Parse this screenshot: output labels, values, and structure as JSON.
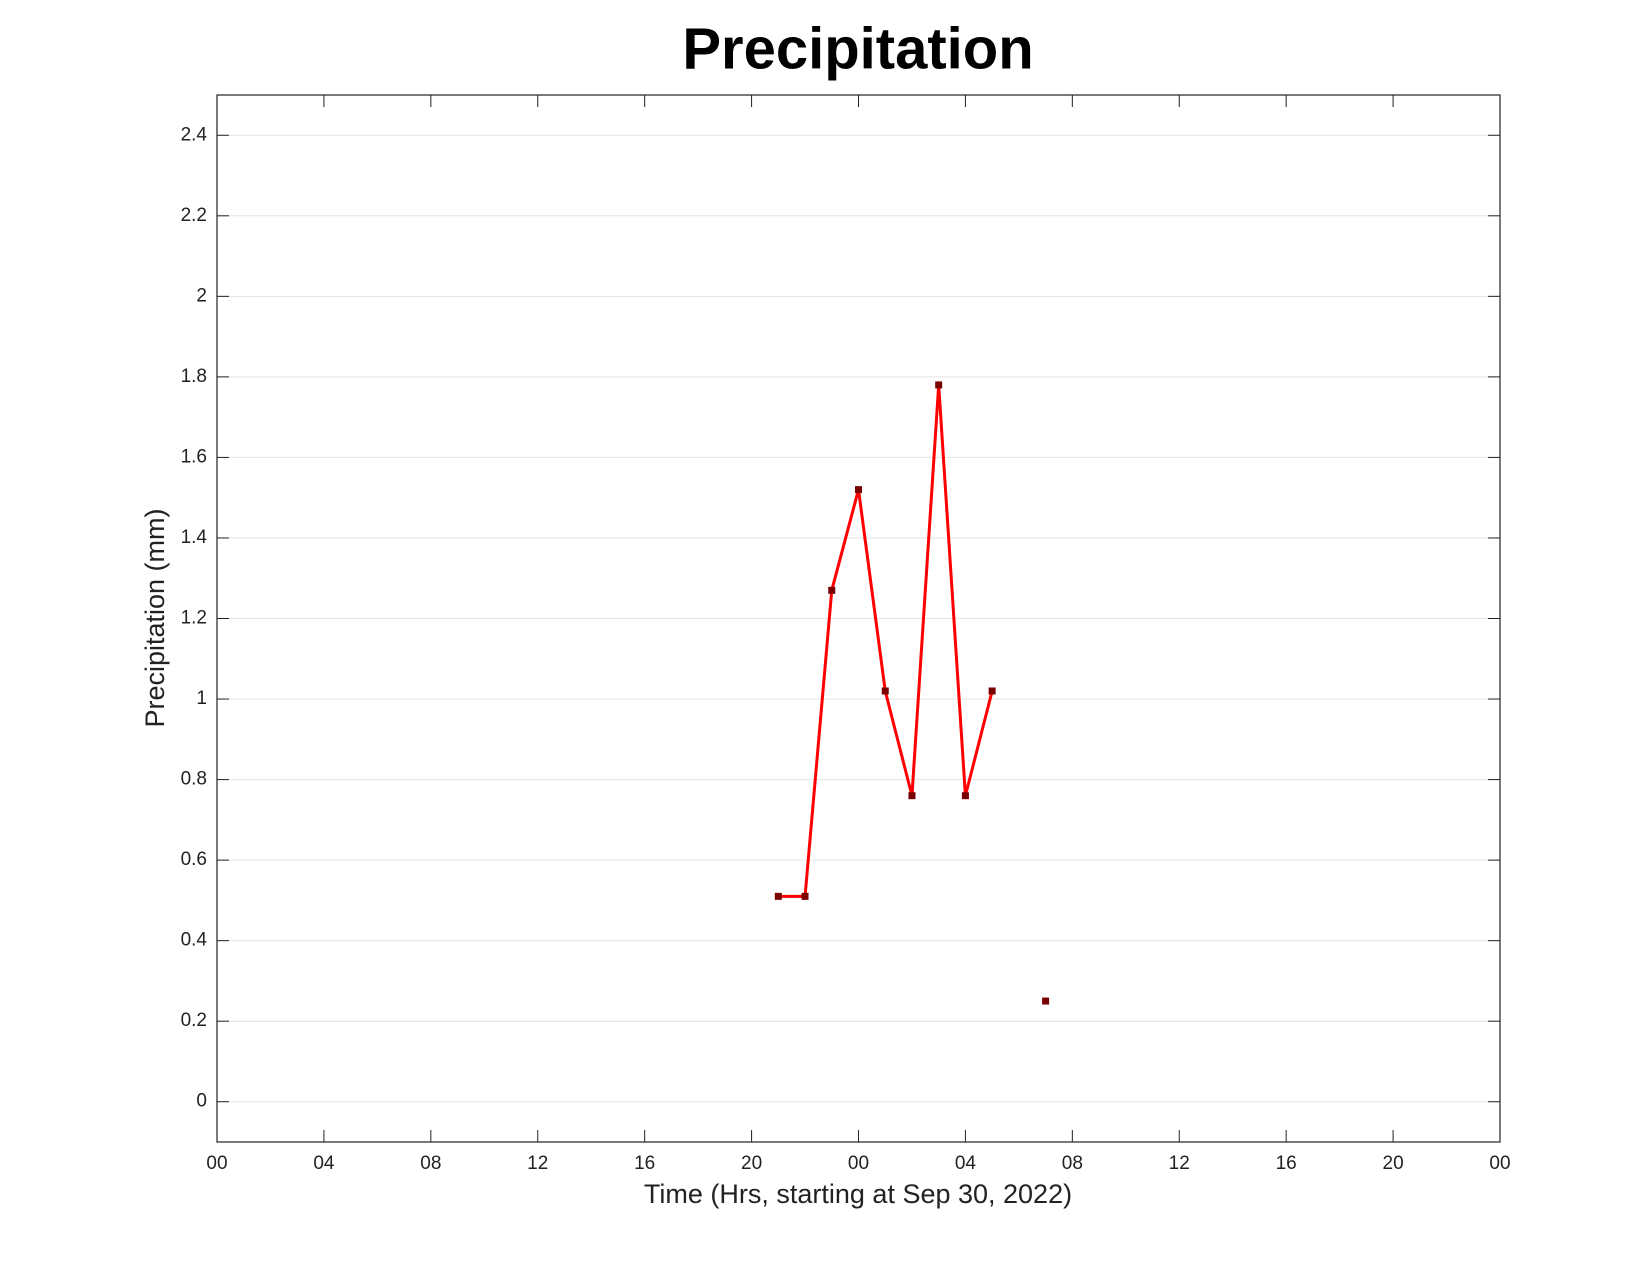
{
  "chart_data": {
    "type": "line",
    "title": "Precipitation",
    "xlabel": "Time (Hrs, starting at Sep 30, 2022)",
    "ylabel": "Precipitation (mm)",
    "x": [
      21,
      22,
      23,
      24,
      25,
      26,
      27,
      28,
      29,
      30,
      31
    ],
    "values": [
      0.51,
      0.51,
      1.27,
      1.52,
      1.02,
      0.76,
      1.78,
      0.76,
      1.02,
      null,
      0.25
    ],
    "color": "#ff0000",
    "marker_color": "#7a0000",
    "xlim": [
      0,
      48
    ],
    "xticks": [
      {
        "value": 0,
        "label": "00"
      },
      {
        "value": 4,
        "label": "04"
      },
      {
        "value": 8,
        "label": "08"
      },
      {
        "value": 12,
        "label": "12"
      },
      {
        "value": 16,
        "label": "16"
      },
      {
        "value": 20,
        "label": "20"
      },
      {
        "value": 24,
        "label": "00"
      },
      {
        "value": 28,
        "label": "04"
      },
      {
        "value": 32,
        "label": "08"
      },
      {
        "value": 36,
        "label": "12"
      },
      {
        "value": 40,
        "label": "16"
      },
      {
        "value": 44,
        "label": "20"
      },
      {
        "value": 48,
        "label": "00"
      }
    ],
    "ylim": [
      -0.1,
      2.5
    ],
    "yticks": [
      0,
      0.2,
      0.4,
      0.6,
      0.8,
      1,
      1.2,
      1.4,
      1.6,
      1.8,
      2,
      2.2,
      2.4
    ],
    "grid": true
  }
}
